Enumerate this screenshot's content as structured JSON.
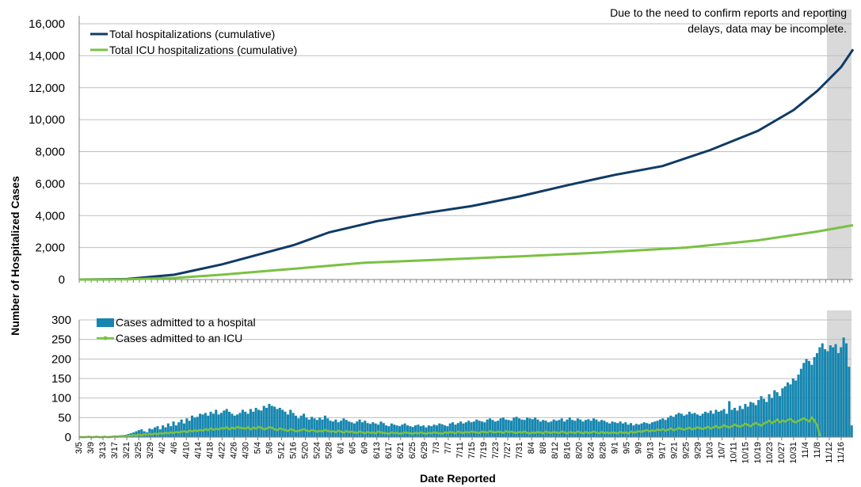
{
  "note": "Due to the need to confirm reports and reporting delays, data may be incomplete.",
  "colors": {
    "total_hosp": "#0f3b66",
    "total_icu": "#7ac143",
    "daily_hosp": "#1686b0",
    "daily_icu": "#7ac143",
    "shade": "#d9d9d9",
    "grid": "#bfbfbf"
  },
  "shaded_region": {
    "start_date": "11/12",
    "end_date": "11/20"
  },
  "chart_data": [
    {
      "type": "line",
      "panel": "top",
      "xlabel": "",
      "ylabel": "Number of Hospitalized Cases",
      "ylim": [
        0,
        16000
      ],
      "yticks": [
        0,
        2000,
        4000,
        6000,
        8000,
        10000,
        12000,
        14000,
        16000
      ],
      "ytick_labels": [
        "0",
        "2,000",
        "4,000",
        "6,000",
        "8,000",
        "10,000",
        "12,000",
        "14,000",
        "16,000"
      ],
      "grid": true,
      "legend": "top-left",
      "x_range": [
        "3/5",
        "11/20"
      ],
      "series": [
        {
          "name": "Total hospitalizations (cumulative)",
          "points": [
            [
              "3/5",
              0
            ],
            [
              "3/21",
              30
            ],
            [
              "4/6",
              300
            ],
            [
              "4/22",
              950
            ],
            [
              "5/4",
              1550
            ],
            [
              "5/16",
              2150
            ],
            [
              "5/28",
              2950
            ],
            [
              "6/13",
              3650
            ],
            [
              "6/29",
              4150
            ],
            [
              "7/15",
              4600
            ],
            [
              "7/31",
              5200
            ],
            [
              "8/16",
              5900
            ],
            [
              "9/1",
              6550
            ],
            [
              "9/17",
              7100
            ],
            [
              "10/3",
              8100
            ],
            [
              "10/19",
              9300
            ],
            [
              "10/31",
              10600
            ],
            [
              "11/8",
              11800
            ],
            [
              "11/16",
              13300
            ],
            [
              "11/20",
              14400
            ]
          ]
        },
        {
          "name": "Total ICU hospitalizations (cumulative)",
          "points": [
            [
              "3/5",
              0
            ],
            [
              "3/21",
              10
            ],
            [
              "4/6",
              100
            ],
            [
              "4/22",
              300
            ],
            [
              "5/8",
              550
            ],
            [
              "5/24",
              800
            ],
            [
              "6/9",
              1050
            ],
            [
              "6/29",
              1200
            ],
            [
              "7/31",
              1450
            ],
            [
              "8/28",
              1700
            ],
            [
              "9/25",
              2000
            ],
            [
              "10/19",
              2450
            ],
            [
              "11/8",
              3000
            ],
            [
              "11/20",
              3400
            ]
          ]
        }
      ]
    },
    {
      "type": "bar",
      "panel": "bottom",
      "xlabel": "Date Reported",
      "ylabel": "Number of Hospitalized Cases",
      "ylim": [
        0,
        300
      ],
      "yticks": [
        0,
        50,
        100,
        150,
        200,
        250,
        300
      ],
      "grid": true,
      "legend": "top-left",
      "x_tick_labels": [
        "3/5",
        "3/9",
        "3/13",
        "3/17",
        "3/21",
        "3/25",
        "3/29",
        "4/2",
        "4/6",
        "4/10",
        "4/14",
        "4/18",
        "4/22",
        "4/26",
        "4/30",
        "5/4",
        "5/8",
        "5/12",
        "5/16",
        "5/20",
        "5/24",
        "5/28",
        "6/1",
        "6/5",
        "6/9",
        "6/13",
        "6/17",
        "6/21",
        "6/25",
        "6/29",
        "7/3",
        "7/7",
        "7/11",
        "7/15",
        "7/19",
        "7/23",
        "7/27",
        "7/31",
        "8/4",
        "8/8",
        "8/12",
        "8/16",
        "8/20",
        "8/24",
        "8/28",
        "9/1",
        "9/5",
        "9/9",
        "9/13",
        "9/17",
        "9/21",
        "9/25",
        "9/29",
        "10/3",
        "10/7",
        "10/11",
        "10/15",
        "10/19",
        "10/23",
        "10/27",
        "10/31",
        "11/4",
        "11/8",
        "11/12",
        "11/16"
      ],
      "series": [
        {
          "name": "Cases admitted to a hospital",
          "kind": "bar",
          "values": [
            2,
            0,
            1,
            0,
            2,
            1,
            0,
            1,
            2,
            0,
            1,
            3,
            2,
            1,
            4,
            5,
            3,
            6,
            8,
            10,
            12,
            15,
            18,
            20,
            15,
            12,
            22,
            20,
            25,
            28,
            20,
            30,
            25,
            35,
            28,
            40,
            30,
            38,
            45,
            35,
            48,
            42,
            55,
            50,
            52,
            60,
            58,
            62,
            55,
            65,
            60,
            70,
            58,
            62,
            68,
            72,
            65,
            60,
            55,
            58,
            62,
            70,
            65,
            60,
            72,
            65,
            75,
            70,
            68,
            80,
            75,
            85,
            80,
            78,
            72,
            75,
            70,
            65,
            58,
            70,
            62,
            55,
            48,
            55,
            60,
            50,
            45,
            52,
            48,
            44,
            50,
            45,
            55,
            48,
            42,
            40,
            45,
            38,
            42,
            48,
            44,
            40,
            38,
            35,
            40,
            45,
            38,
            42,
            36,
            34,
            38,
            35,
            32,
            40,
            36,
            30,
            28,
            35,
            32,
            30,
            28,
            32,
            35,
            30,
            28,
            26,
            30,
            32,
            28,
            30,
            25,
            30,
            28,
            32,
            30,
            35,
            33,
            30,
            28,
            35,
            38,
            32,
            36,
            40,
            35,
            38,
            42,
            38,
            40,
            45,
            42,
            40,
            38,
            45,
            48,
            44,
            40,
            42,
            48,
            50,
            45,
            44,
            42,
            50,
            52,
            48,
            45,
            44,
            50,
            48,
            46,
            50,
            45,
            40,
            44,
            42,
            38,
            40,
            45,
            42,
            44,
            48,
            40,
            45,
            50,
            44,
            42,
            48,
            45,
            40,
            44,
            46,
            42,
            48,
            45,
            40,
            44,
            42,
            38,
            35,
            40,
            38,
            36,
            40,
            35,
            38,
            32,
            36,
            30,
            34,
            32,
            35,
            38,
            36,
            34,
            38,
            40,
            42,
            45,
            48,
            44,
            50,
            55,
            52,
            58,
            62,
            60,
            55,
            58,
            65,
            60,
            62,
            58,
            55,
            60,
            65,
            62,
            68,
            60,
            70,
            65,
            68,
            72,
            60,
            92,
            70,
            75,
            68,
            80,
            72,
            85,
            78,
            90,
            88,
            82,
            95,
            105,
            98,
            90,
            110,
            100,
            120,
            115,
            105,
            125,
            130,
            140,
            135,
            150,
            145,
            160,
            175,
            190,
            200,
            195,
            185,
            205,
            215,
            230,
            240,
            225,
            220,
            235,
            230,
            238,
            215,
            230,
            255,
            240,
            180,
            30
          ]
        },
        {
          "name": "Cases admitted to an ICU",
          "kind": "line",
          "values": [
            0,
            0,
            0,
            1,
            0,
            0,
            1,
            0,
            0,
            1,
            0,
            0,
            1,
            2,
            1,
            2,
            3,
            2,
            3,
            4,
            5,
            4,
            6,
            5,
            7,
            6,
            8,
            7,
            9,
            8,
            10,
            9,
            11,
            10,
            12,
            11,
            13,
            12,
            14,
            15,
            13,
            16,
            15,
            17,
            16,
            18,
            17,
            20,
            18,
            22,
            19,
            21,
            20,
            23,
            22,
            25,
            20,
            24,
            22,
            26,
            24,
            23,
            22,
            25,
            20,
            24,
            22,
            26,
            24,
            20,
            22,
            25,
            24,
            20,
            18,
            22,
            20,
            18,
            16,
            20,
            18,
            15,
            16,
            18,
            20,
            17,
            15,
            18,
            16,
            14,
            16,
            15,
            18,
            16,
            14,
            15,
            13,
            16,
            14,
            12,
            15,
            13,
            14,
            12,
            11,
            14,
            12,
            10,
            13,
            11,
            12,
            10,
            14,
            12,
            11,
            10,
            9,
            12,
            10,
            11,
            9,
            10,
            12,
            11,
            10,
            9,
            11,
            10,
            12,
            10,
            9,
            11,
            10,
            12,
            11,
            10,
            9,
            12,
            11,
            13,
            12,
            10,
            14,
            12,
            11,
            13,
            12,
            14,
            13,
            12,
            11,
            14,
            13,
            12,
            15,
            13,
            12,
            14,
            13,
            11,
            15,
            13,
            14,
            12,
            11,
            13,
            12,
            14,
            11,
            10,
            12,
            11,
            13,
            12,
            10,
            14,
            12,
            11,
            13,
            12,
            11,
            14,
            12,
            10,
            13,
            12,
            11,
            14,
            12,
            10,
            13,
            11,
            12,
            14,
            12,
            10,
            13,
            11,
            12,
            10,
            12,
            11,
            10,
            13,
            11,
            12,
            10,
            14,
            12,
            13,
            15,
            14,
            16,
            18,
            15,
            17,
            16,
            19,
            18,
            20,
            17,
            19,
            22,
            18,
            20,
            23,
            21,
            19,
            22,
            24,
            20,
            22,
            25,
            23,
            21,
            24,
            26,
            22,
            25,
            28,
            24,
            26,
            30,
            27,
            25,
            28,
            32,
            29,
            27,
            30,
            34,
            31,
            28,
            33,
            36,
            32,
            30,
            35,
            38,
            42,
            36,
            40,
            45,
            38,
            42,
            40,
            44,
            46,
            40,
            38,
            42,
            45,
            48,
            44,
            40,
            50,
            42,
            30,
            5
          ]
        }
      ]
    }
  ]
}
